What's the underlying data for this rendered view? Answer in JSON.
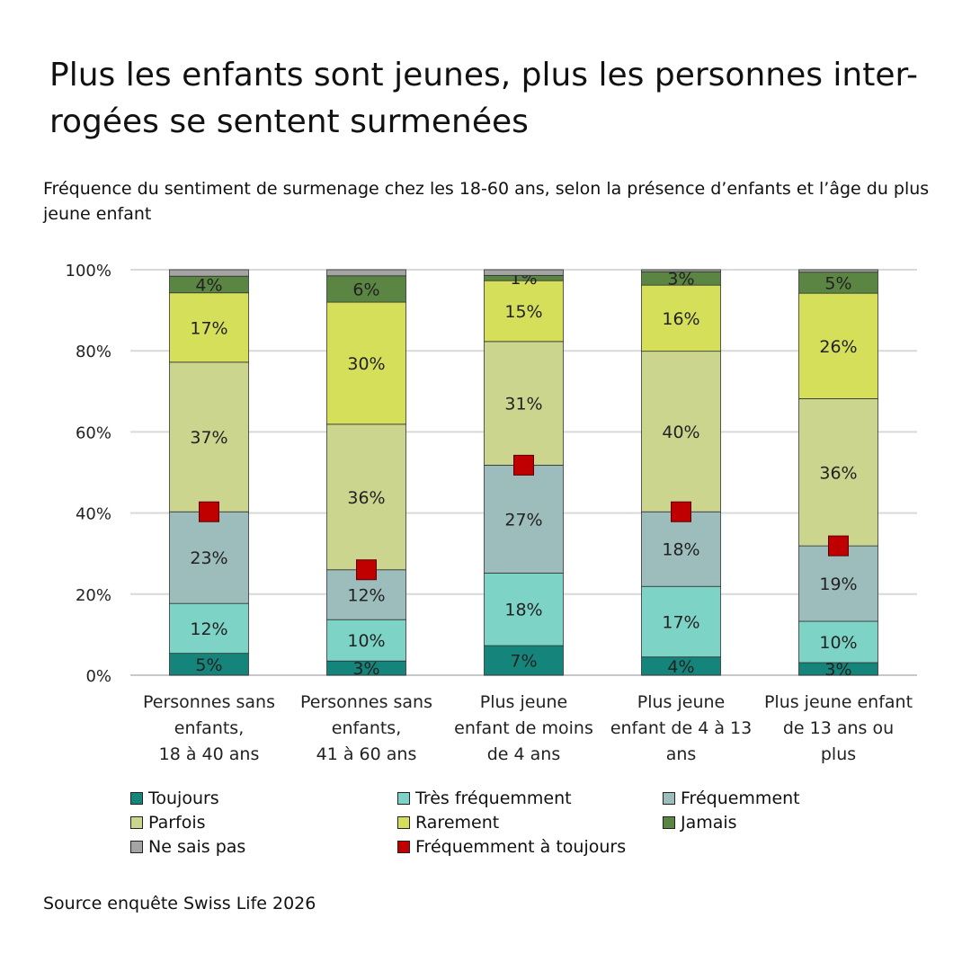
{
  "title": "Plus les enfants sont jeunes, plus les personnes interrogées se sentent surmenées",
  "title_line1": "Plus les enfants sont jeunes, plus les personnes inter-",
  "title_line2": "rogées se sentent surmenées",
  "subtitle": "Fréquence du sentiment de surmenage chez les 18-60 ans, selon la présence d’enfants et l’âge du plus jeune enfant",
  "source": "Source enquête Swiss Life 2026",
  "chart_data": {
    "type": "bar",
    "stacked": true,
    "categories": [
      [
        "Personnes sans",
        "enfants,",
        "18 à 40 ans"
      ],
      [
        "Personnes sans",
        "enfants,",
        "41 à 60 ans"
      ],
      [
        "Plus jeune",
        "enfant de moins",
        "de 4 ans"
      ],
      [
        "Plus jeune",
        "enfant de 4 à 13",
        "ans"
      ],
      [
        "Plus jeune enfant",
        "de 13 ans ou",
        "plus"
      ]
    ],
    "ylim": [
      0,
      100
    ],
    "yticks": [
      "0%",
      "20%",
      "40%",
      "60%",
      "80%",
      "100%"
    ],
    "grid": true,
    "series": [
      {
        "name": "Toujours",
        "color": "#15847a",
        "values": [
          5.4,
          3.5,
          7.3,
          4.5,
          3.1
        ],
        "labels": [
          "5%",
          "3%",
          "7%",
          "4%",
          "3%"
        ]
      },
      {
        "name": "Très fréquemment",
        "color": "#7dd3c6",
        "values": [
          12.3,
          10.2,
          17.9,
          17.4,
          10.2
        ],
        "labels": [
          "12%",
          "10%",
          "18%",
          "17%",
          "10%"
        ]
      },
      {
        "name": "Fréquemment",
        "color": "#9dbdbc",
        "values": [
          22.6,
          12.3,
          26.6,
          18.4,
          18.6
        ],
        "labels": [
          "23%",
          "12%",
          "27%",
          "18%",
          "19%"
        ]
      },
      {
        "name": "Parfois",
        "color": "#ccd58e",
        "values": [
          36.9,
          35.9,
          30.5,
          39.6,
          36.3
        ],
        "labels": [
          "37%",
          "36%",
          "31%",
          "40%",
          "36%"
        ]
      },
      {
        "name": "Rarement",
        "color": "#d6df59",
        "values": [
          17.1,
          30.1,
          15.0,
          16.3,
          26.0
        ],
        "labels": [
          "17%",
          "30%",
          "15%",
          "16%",
          "26%"
        ]
      },
      {
        "name": "Jamais",
        "color": "#5b8543",
        "values": [
          4.1,
          6.5,
          1.3,
          3.3,
          5.2
        ],
        "labels": [
          "4%",
          "6%",
          "1%",
          "3%",
          "5%"
        ]
      },
      {
        "name": "Ne sais pas",
        "color": "#a4a4a4",
        "values": [
          1.6,
          1.5,
          1.4,
          0.5,
          0.6
        ],
        "labels": [
          "",
          "",
          "",
          "",
          ""
        ]
      }
    ],
    "markers": {
      "name": "Fréquemment à toujours",
      "color": "#c00000",
      "values": [
        40.3,
        26.0,
        51.8,
        40.3,
        31.9
      ]
    },
    "legend_position": "bottom"
  }
}
